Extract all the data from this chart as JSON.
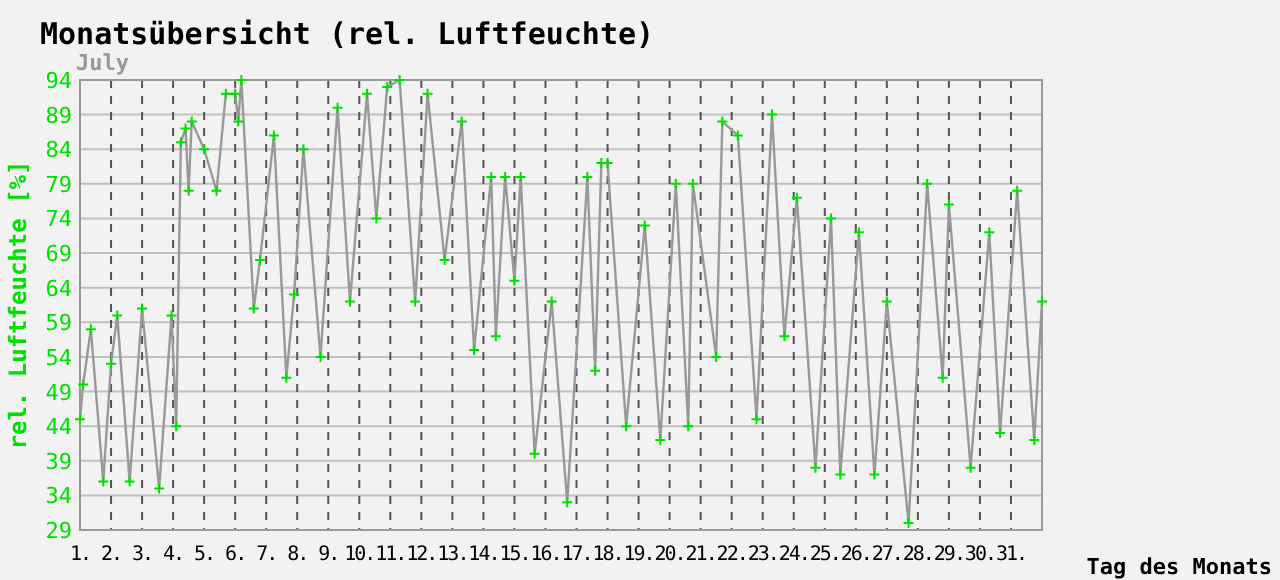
{
  "chart_data": {
    "type": "line",
    "title": "Monatsübersicht (rel. Luftfeuchte)",
    "subtitle": "July",
    "ylabel": "rel. Luftfeuchte [%]",
    "xlabel": "Tag des Monats",
    "x": [
      1.0,
      1.1,
      1.35,
      1.75,
      2.0,
      2.2,
      2.6,
      3.0,
      3.55,
      3.95,
      4.1,
      4.25,
      4.4,
      4.5,
      4.6,
      5.0,
      5.4,
      5.7,
      6.0,
      6.1,
      6.2,
      6.6,
      6.8,
      7.25,
      7.65,
      7.9,
      8.2,
      8.75,
      9.3,
      9.7,
      10.25,
      10.55,
      10.9,
      11.3,
      11.8,
      12.2,
      12.75,
      13.3,
      13.7,
      14.25,
      14.4,
      14.7,
      15.0,
      15.2,
      15.65,
      16.2,
      16.7,
      17.35,
      17.6,
      17.8,
      18.0,
      18.6,
      19.2,
      19.7,
      20.2,
      20.6,
      20.75,
      21.5,
      21.7,
      22.2,
      22.8,
      23.3,
      23.7,
      24.1,
      24.7,
      25.2,
      25.5,
      26.1,
      26.6,
      27.0,
      27.7,
      28.3,
      28.8,
      29.0,
      29.7,
      30.3,
      30.65,
      31.2,
      31.75,
      32.0
    ],
    "series": [
      {
        "color": "#999999",
        "marker": "none",
        "values": [
          45,
          50,
          58,
          36,
          53,
          60,
          36,
          61,
          35,
          60,
          44,
          85,
          87,
          78,
          88,
          84,
          78,
          92,
          92,
          88,
          94,
          61,
          68,
          86,
          51,
          63,
          84,
          54,
          90,
          62,
          92,
          74,
          93,
          94,
          62,
          92,
          68,
          88,
          55,
          80,
          57,
          80,
          65,
          80,
          40,
          62,
          33,
          80,
          52,
          82,
          82,
          44,
          73,
          42,
          79,
          44,
          79,
          54,
          88,
          86,
          45,
          89,
          57,
          77,
          38,
          74,
          37,
          72,
          37,
          62,
          30,
          79,
          51,
          76,
          38,
          72,
          43,
          78,
          42,
          62
        ]
      },
      {
        "type": "scatter",
        "color": "#00e000",
        "marker": "cross",
        "values": [
          45,
          50,
          58,
          36,
          53,
          60,
          36,
          61,
          35,
          60,
          44,
          85,
          87,
          78,
          88,
          84,
          78,
          92,
          92,
          88,
          94,
          61,
          68,
          86,
          51,
          63,
          84,
          54,
          90,
          62,
          92,
          74,
          93,
          94,
          62,
          92,
          68,
          88,
          55,
          80,
          57,
          80,
          65,
          80,
          40,
          62,
          33,
          80,
          52,
          82,
          82,
          44,
          73,
          42,
          79,
          44,
          79,
          54,
          88,
          86,
          45,
          89,
          57,
          77,
          38,
          74,
          37,
          72,
          37,
          62,
          30,
          79,
          51,
          76,
          38,
          72,
          43,
          78,
          42,
          62
        ]
      }
    ],
    "line_style": "solid",
    "grid": true,
    "xlim": [
      1,
      32
    ],
    "xticks": [
      {
        "value": 1,
        "label": "1."
      },
      {
        "value": 2,
        "label": "2."
      },
      {
        "value": 3,
        "label": "3."
      },
      {
        "value": 4,
        "label": "4."
      },
      {
        "value": 5,
        "label": "5."
      },
      {
        "value": 6,
        "label": "6."
      },
      {
        "value": 7,
        "label": "7."
      },
      {
        "value": 8,
        "label": "8."
      },
      {
        "value": 9,
        "label": "9."
      },
      {
        "value": 10,
        "label": "10."
      },
      {
        "value": 11,
        "label": "11."
      },
      {
        "value": 12,
        "label": "12."
      },
      {
        "value": 13,
        "label": "13."
      },
      {
        "value": 14,
        "label": "14."
      },
      {
        "value": 15,
        "label": "15."
      },
      {
        "value": 16,
        "label": "16."
      },
      {
        "value": 17,
        "label": "17."
      },
      {
        "value": 18,
        "label": "18."
      },
      {
        "value": 19,
        "label": "19."
      },
      {
        "value": 20,
        "label": "20."
      },
      {
        "value": 21,
        "label": "21."
      },
      {
        "value": 22,
        "label": "22."
      },
      {
        "value": 23,
        "label": "23."
      },
      {
        "value": 24,
        "label": "24."
      },
      {
        "value": 25,
        "label": "25."
      },
      {
        "value": 26,
        "label": "26."
      },
      {
        "value": 27,
        "label": "27."
      },
      {
        "value": 28,
        "label": "28."
      },
      {
        "value": 29,
        "label": "29."
      },
      {
        "value": 30,
        "label": "30."
      },
      {
        "value": 31,
        "label": "31."
      }
    ],
    "ylim": [
      29,
      94
    ],
    "yticks": [
      29,
      34,
      39,
      44,
      49,
      54,
      59,
      64,
      69,
      74,
      79,
      84,
      89,
      94
    ]
  }
}
